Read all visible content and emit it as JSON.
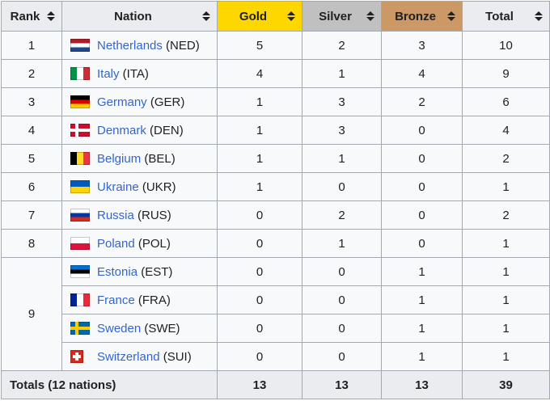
{
  "table": {
    "columns": [
      {
        "key": "rank",
        "label": "Rank",
        "bg": "#eaecf0",
        "sort_icon": "up-down-triangles"
      },
      {
        "key": "nation",
        "label": "Nation",
        "bg": "#eaecf0",
        "sort_icon": "up-down-triangles"
      },
      {
        "key": "gold",
        "label": "Gold",
        "bg": "#ffd700",
        "sort_icon": "up-down-triangles"
      },
      {
        "key": "silver",
        "label": "Silver",
        "bg": "#c0c0c0",
        "sort_icon": "up-down-triangles"
      },
      {
        "key": "bronze",
        "label": "Bronze",
        "bg": "#cc9966",
        "sort_icon": "up-down-triangles"
      },
      {
        "key": "total",
        "label": "Total",
        "bg": "#eaecf0",
        "sort_icon": "up-down-triangles"
      }
    ],
    "rows": [
      {
        "rank": "1",
        "rank_rowspan": 1,
        "nation": "Netherlands",
        "code": "NED",
        "flag": {
          "name": "netherlands-flag-icon",
          "type": "h",
          "colors": [
            "#AE1C28",
            "#FFFFFF",
            "#21468B"
          ]
        },
        "gold": "5",
        "silver": "2",
        "bronze": "3",
        "total": "10"
      },
      {
        "rank": "2",
        "rank_rowspan": 1,
        "nation": "Italy",
        "code": "ITA",
        "flag": {
          "name": "italy-flag-icon",
          "type": "v",
          "colors": [
            "#009246",
            "#FFFFFF",
            "#CE2B37"
          ]
        },
        "gold": "4",
        "silver": "1",
        "bronze": "4",
        "total": "9"
      },
      {
        "rank": "3",
        "rank_rowspan": 1,
        "nation": "Germany",
        "code": "GER",
        "flag": {
          "name": "germany-flag-icon",
          "type": "h",
          "colors": [
            "#000000",
            "#DD0000",
            "#FFCE00"
          ]
        },
        "gold": "1",
        "silver": "3",
        "bronze": "2",
        "total": "6"
      },
      {
        "rank": "4",
        "rank_rowspan": 1,
        "nation": "Denmark",
        "code": "DEN",
        "flag": {
          "name": "denmark-flag-icon",
          "type": "nordic",
          "bg": "#C8102E",
          "cross": "#FFFFFF"
        },
        "gold": "1",
        "silver": "3",
        "bronze": "0",
        "total": "4"
      },
      {
        "rank": "5",
        "rank_rowspan": 1,
        "nation": "Belgium",
        "code": "BEL",
        "flag": {
          "name": "belgium-flag-icon",
          "type": "v",
          "colors": [
            "#000000",
            "#FDDA24",
            "#EF3340"
          ]
        },
        "gold": "1",
        "silver": "1",
        "bronze": "0",
        "total": "2"
      },
      {
        "rank": "6",
        "rank_rowspan": 1,
        "nation": "Ukraine",
        "code": "UKR",
        "flag": {
          "name": "ukraine-flag-icon",
          "type": "h",
          "colors": [
            "#005BBB",
            "#FFD500"
          ]
        },
        "gold": "1",
        "silver": "0",
        "bronze": "0",
        "total": "1"
      },
      {
        "rank": "7",
        "rank_rowspan": 1,
        "nation": "Russia",
        "code": "RUS",
        "flag": {
          "name": "russia-flag-icon",
          "type": "h",
          "colors": [
            "#FFFFFF",
            "#0039A6",
            "#D52B1E"
          ]
        },
        "gold": "0",
        "silver": "2",
        "bronze": "0",
        "total": "2"
      },
      {
        "rank": "8",
        "rank_rowspan": 1,
        "nation": "Poland",
        "code": "POL",
        "flag": {
          "name": "poland-flag-icon",
          "type": "h",
          "colors": [
            "#FFFFFF",
            "#DC143C"
          ]
        },
        "gold": "0",
        "silver": "1",
        "bronze": "0",
        "total": "1"
      },
      {
        "rank": "9",
        "rank_rowspan": 4,
        "nation": "Estonia",
        "code": "EST",
        "flag": {
          "name": "estonia-flag-icon",
          "type": "h",
          "colors": [
            "#0072CE",
            "#000000",
            "#FFFFFF"
          ]
        },
        "gold": "0",
        "silver": "0",
        "bronze": "1",
        "total": "1"
      },
      {
        "rank": null,
        "nation": "France",
        "code": "FRA",
        "flag": {
          "name": "france-flag-icon",
          "type": "v",
          "colors": [
            "#002395",
            "#FFFFFF",
            "#ED2939"
          ]
        },
        "gold": "0",
        "silver": "0",
        "bronze": "1",
        "total": "1"
      },
      {
        "rank": null,
        "nation": "Sweden",
        "code": "SWE",
        "flag": {
          "name": "sweden-flag-icon",
          "type": "nordic",
          "bg": "#006AA7",
          "cross": "#FECC00"
        },
        "gold": "0",
        "silver": "0",
        "bronze": "1",
        "total": "1"
      },
      {
        "rank": null,
        "nation": "Switzerland",
        "code": "SUI",
        "flag": {
          "name": "switzerland-flag-icon",
          "type": "swiss",
          "bg": "#DA291C",
          "cross": "#FFFFFF"
        },
        "gold": "0",
        "silver": "0",
        "bronze": "1",
        "total": "1"
      }
    ],
    "totals": {
      "label": "Totals (12 nations)",
      "gold": "13",
      "silver": "13",
      "bronze": "13",
      "total": "39"
    }
  }
}
